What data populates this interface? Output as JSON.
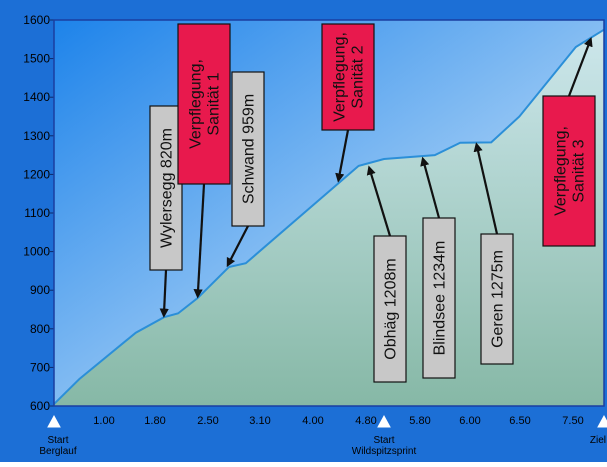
{
  "chart_data": {
    "type": "area",
    "title": "",
    "xlabel": "",
    "ylabel": "",
    "ylim": [
      600,
      1600
    ],
    "y_ticks": [
      600,
      700,
      800,
      900,
      1000,
      1100,
      1200,
      1300,
      1400,
      1500,
      1600
    ],
    "x_tick_labels": [
      "1.00",
      "1.80",
      "2.50",
      "3.10",
      "4.00",
      "4.80",
      "5.80",
      "6.00",
      "6.50",
      "7.50"
    ],
    "grid": false,
    "colors": {
      "frame": "#1a3fa0",
      "outer_bg": "#1c6fd6",
      "sky_top": "#1d83ea",
      "sky_bottom": "#e8f4fb",
      "line": "#2b8fd8",
      "fill_top": "#cde7ec",
      "fill_bottom": "#86b8a6",
      "red_box": "#e8194d",
      "grey_box": "#c8c8c8"
    },
    "profile": [
      {
        "km": 0.0,
        "elev": 605
      },
      {
        "km": 0.45,
        "elev": 670
      },
      {
        "km": 1.45,
        "elev": 790
      },
      {
        "km": 1.95,
        "elev": 830
      },
      {
        "km": 2.2,
        "elev": 840
      },
      {
        "km": 2.55,
        "elev": 880
      },
      {
        "km": 3.1,
        "elev": 960
      },
      {
        "km": 3.4,
        "elev": 970
      },
      {
        "km": 5.4,
        "elev": 1222
      },
      {
        "km": 5.85,
        "elev": 1240
      },
      {
        "km": 6.75,
        "elev": 1250
      },
      {
        "km": 7.2,
        "elev": 1282
      },
      {
        "km": 7.75,
        "elev": 1283
      },
      {
        "km": 8.25,
        "elev": 1350
      },
      {
        "km": 9.25,
        "elev": 1530
      },
      {
        "km": 9.75,
        "elev": 1575
      }
    ],
    "markers": [
      {
        "label": "Start\nBerglauf",
        "km": 0.0
      },
      {
        "label": "Start\nWildspitzsprint",
        "km": 5.85
      },
      {
        "label": "Ziel",
        "km": 9.75
      }
    ],
    "annotations": [
      {
        "text": "Wylersegg 820m",
        "style": "grey",
        "arrow": "down",
        "km": 1.95,
        "elev": 830
      },
      {
        "text": "Verpflegung,\nSanität 1",
        "style": "red",
        "arrow": "down",
        "km": 2.55,
        "elev": 880
      },
      {
        "text": "Schwand 959m",
        "style": "grey",
        "arrow": "down",
        "km": 3.1,
        "elev": 960
      },
      {
        "text": "Verpflegung,\nSanität 2",
        "style": "red",
        "arrow": "down",
        "km": 5.05,
        "elev": 1180
      },
      {
        "text": "Obhäg 1208m",
        "style": "grey",
        "arrow": "up",
        "km": 5.6,
        "elev": 1222
      },
      {
        "text": "Blindsee 1234m",
        "style": "grey",
        "arrow": "up",
        "km": 6.55,
        "elev": 1245
      },
      {
        "text": "Geren 1275m",
        "style": "grey",
        "arrow": "up",
        "km": 7.5,
        "elev": 1282
      },
      {
        "text": "Verpflegung,\nSanität 3",
        "style": "red",
        "arrow": "up",
        "km": 9.5,
        "elev": 1555
      }
    ]
  }
}
